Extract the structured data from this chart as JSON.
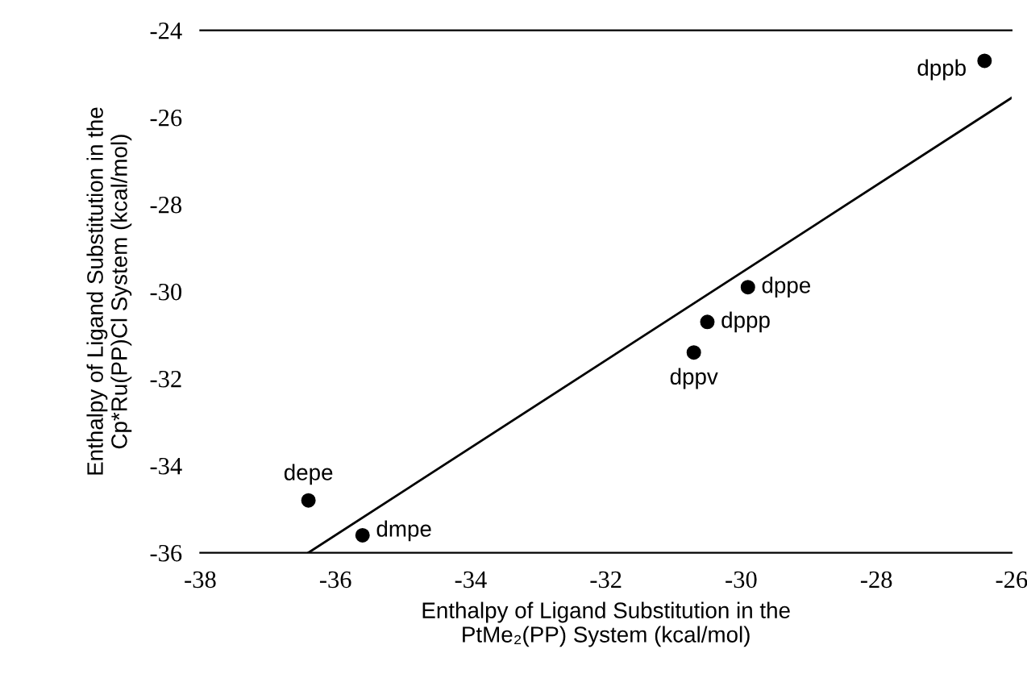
{
  "chart_data": {
    "type": "scatter",
    "xlabel": "Enthalpy of Ligand Substitution in the\nPtMe₂(PP) System (kcal/mol)",
    "ylabel": "Enthalpy of Ligand Substitution in the\nCp*Ru(PP)Cl System (kcal/mol)",
    "xlim": [
      -38,
      -26
    ],
    "ylim": [
      -36,
      -24
    ],
    "xticks": [
      -38,
      -36,
      -34,
      -32,
      -30,
      -28,
      -26
    ],
    "yticks": [
      -36,
      -34,
      -32,
      -30,
      -28,
      -26,
      -24
    ],
    "grid": false,
    "legend": false,
    "marker": "circle",
    "series": [
      {
        "color": "#000000",
        "x": [
          -26.4,
          -29.9,
          -30.5,
          -30.7,
          -36.4,
          -35.6
        ],
        "values": [
          -24.7,
          -29.9,
          -30.7,
          -31.4,
          -34.8,
          -35.6
        ]
      },
      {
        "type": "line",
        "color": "#000000",
        "line_style": "solid",
        "marker": "none",
        "x": [
          -36.4,
          -26.0
        ],
        "values": [
          -36.0,
          -25.55
        ]
      }
    ],
    "annotations": [
      {
        "text": "dppb",
        "x": -26.4,
        "y": -24.7
      },
      {
        "text": "dppe",
        "x": -29.9,
        "y": -29.9
      },
      {
        "text": "dppp",
        "x": -30.5,
        "y": -30.7
      },
      {
        "text": "dppv",
        "x": -30.7,
        "y": -31.4
      },
      {
        "text": "depe",
        "x": -36.4,
        "y": -34.8
      },
      {
        "text": "dmpe",
        "x": -35.6,
        "y": -35.6
      }
    ]
  }
}
